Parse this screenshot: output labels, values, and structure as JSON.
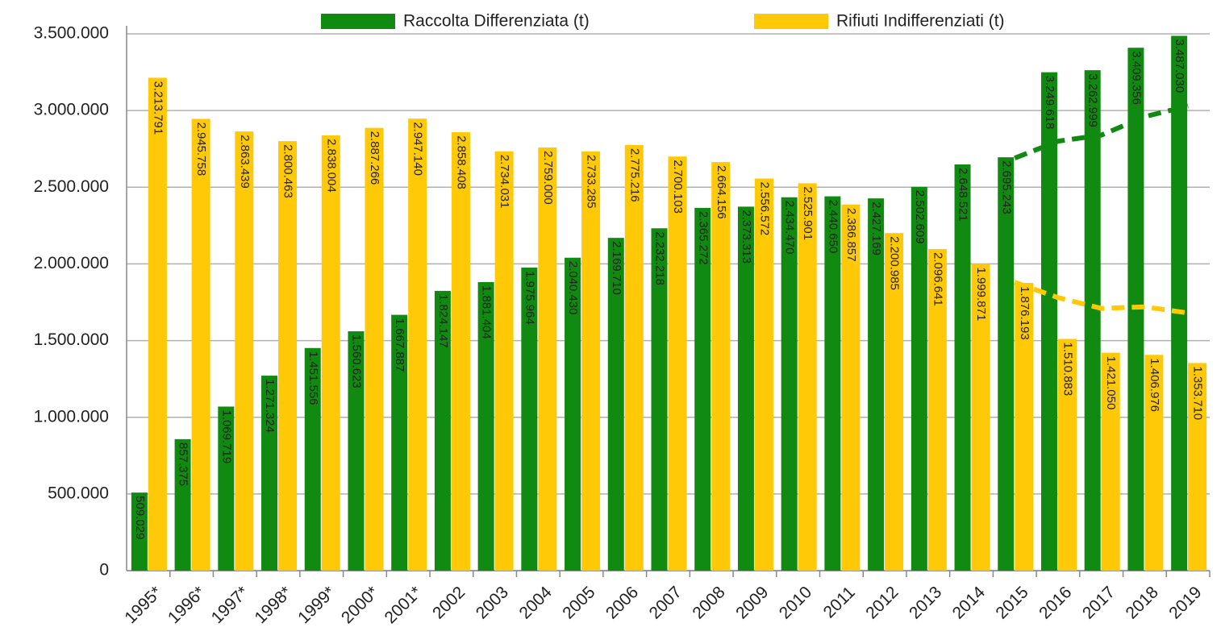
{
  "chart_data": {
    "type": "bar",
    "categories": [
      "1995*",
      "1996*",
      "1997*",
      "1998*",
      "1999*",
      "2000*",
      "2001*",
      "2002",
      "2003",
      "2004",
      "2005",
      "2006",
      "2007",
      "2008",
      "2009",
      "2010",
      "2011",
      "2012",
      "2013",
      "2014",
      "2015",
      "2016",
      "2017",
      "2018",
      "2019"
    ],
    "series": [
      {
        "name": "Raccolta Differenziata (t)",
        "color": "#118a11",
        "values": [
          509029,
          857375,
          1069719,
          1271324,
          1451556,
          1560623,
          1667887,
          1824147,
          1881404,
          1975964,
          2040430,
          2169710,
          2232218,
          2365272,
          2373313,
          2434470,
          2440650,
          2427169,
          2502609,
          2648521,
          2695243,
          3249618,
          3262999,
          3409356,
          3487030
        ],
        "value_labels": [
          "509.029",
          "857.375",
          "1.069.719",
          "1.271.324",
          "1.451.556",
          "1.560.623",
          "1.667.887",
          "1.824.147",
          "1.881.404",
          "1.975.964",
          "2.040.430",
          "2.169.710",
          "2.232.218",
          "2.365.272",
          "2.373.313",
          "2.434.470",
          "2.440.650",
          "2.427.169",
          "2.502.609",
          "2.648.521",
          "2.695.243",
          "3.249.618",
          "3.262.999",
          "3.409.356",
          "3.487.030"
        ]
      },
      {
        "name": "Rifiuti Indifferenziati (t)",
        "color": "#ffc907",
        "values": [
          3213791,
          2945758,
          2863439,
          2800463,
          2838004,
          2887266,
          2947140,
          2858408,
          2734031,
          2759000,
          2733285,
          2775216,
          2700103,
          2664156,
          2556572,
          2525901,
          2386857,
          2200985,
          2096641,
          1999871,
          1876193,
          1510883,
          1421050,
          1406976,
          1353710
        ],
        "value_labels": [
          "3.213.791",
          "2.945.758",
          "2.863.439",
          "2.800.463",
          "2.838.004",
          "2.887.266",
          "2.947.140",
          "2.858.408",
          "2.734.031",
          "2.759.000",
          "2.733.285",
          "2.775.216",
          "2.700.103",
          "2.664.156",
          "2.556.572",
          "2.525.901",
          "2.386.857",
          "2.200.985",
          "2.096.641",
          "1.999.871",
          "1.876.193",
          "1.510.883",
          "1.421.050",
          "1.406.976",
          "1.353.710"
        ]
      }
    ],
    "trend_lines": [
      {
        "color": "#118a11",
        "values": [
          null,
          null,
          null,
          null,
          null,
          null,
          null,
          null,
          null,
          null,
          null,
          null,
          null,
          null,
          null,
          null,
          null,
          null,
          null,
          null,
          2690000,
          2800000,
          2840000,
          2960000,
          3030000
        ]
      },
      {
        "color": "#ffc907",
        "values": [
          null,
          null,
          null,
          null,
          null,
          null,
          null,
          null,
          null,
          null,
          null,
          null,
          null,
          null,
          null,
          null,
          null,
          null,
          null,
          null,
          1880000,
          1780000,
          1710000,
          1720000,
          1680000
        ]
      }
    ],
    "ylim": [
      0,
      3500000
    ],
    "yticks": [
      0,
      {
        "value": 500000,
        "label": "500.000"
      },
      {
        "value": 1000000,
        "label": "1.000.000"
      },
      {
        "value": 1500000,
        "label": "1.500.000"
      },
      {
        "value": 2000000,
        "label": "2.000.000"
      },
      {
        "value": 2500000,
        "label": "2.500.000"
      },
      {
        "value": 3000000,
        "label": "3.000.000"
      },
      {
        "value": 3500000,
        "label": "3.500.000"
      }
    ],
    "grid": true,
    "legend": "top"
  }
}
